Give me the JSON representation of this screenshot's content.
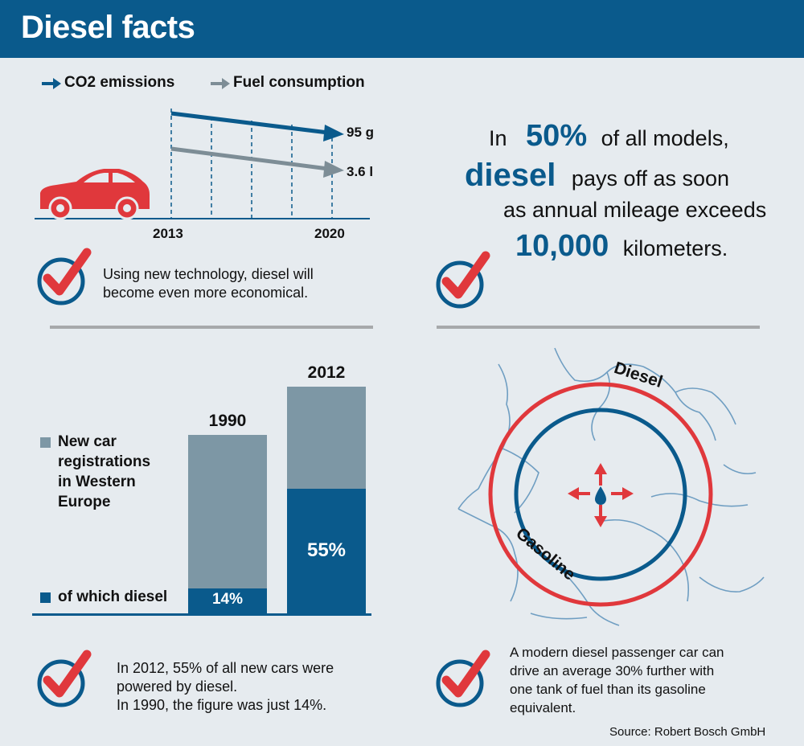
{
  "header": {
    "title": "Diesel facts"
  },
  "emissions_chart": {
    "legend": {
      "co2": "CO2 emissions",
      "fuel": "Fuel consumption",
      "colors": {
        "co2": "#0a5a8c",
        "fuel": "#7d8d96"
      }
    },
    "co2_value": "95 g",
    "fuel_value": "3.6 l",
    "year_start": "2013",
    "year_end": "2020",
    "note_line1": "Using new technology, diesel will",
    "note_line2": "become even more economical."
  },
  "mileage_fact": {
    "line1_pre": "In",
    "line1_num": "50%",
    "line1_post": "of all models,",
    "line2_word": "diesel",
    "line2_post": "pays off as soon",
    "line3": "as annual mileage exceeds",
    "line4_num": "10,000",
    "line4_post": "kilometers."
  },
  "chart_data": {
    "type": "bar",
    "categories": [
      "1990",
      "2012"
    ],
    "series": [
      {
        "name": "New car registrations in Western Europe",
        "values": [
          100,
          100
        ]
      },
      {
        "name": "of which diesel",
        "values": [
          14,
          55
        ]
      }
    ],
    "data_labels": [
      "14%",
      "55%"
    ],
    "colors": {
      "total": "#7d97a5",
      "diesel": "#0a5a8c"
    }
  },
  "registrations": {
    "legend_total_lines": [
      "New car",
      "registrations",
      "in Western",
      "Europe"
    ],
    "legend_diesel": "of which diesel",
    "note_line1": "In 2012, 55% of all new cars were",
    "note_line2": "powered by diesel.",
    "note_line3": "In 1990, the figure was just 14%."
  },
  "range_diagram": {
    "outer_label": "Diesel",
    "inner_label": "Gasoline",
    "colors": {
      "diesel": "#e0383c",
      "gasoline": "#0a5a8c"
    },
    "note_line1": "A modern diesel passenger car can",
    "note_line2": "drive an average 30% further with",
    "note_line3": "one tank of fuel than its gasoline",
    "note_line4": "equivalent."
  },
  "source": "Source: Robert Bosch GmbH"
}
